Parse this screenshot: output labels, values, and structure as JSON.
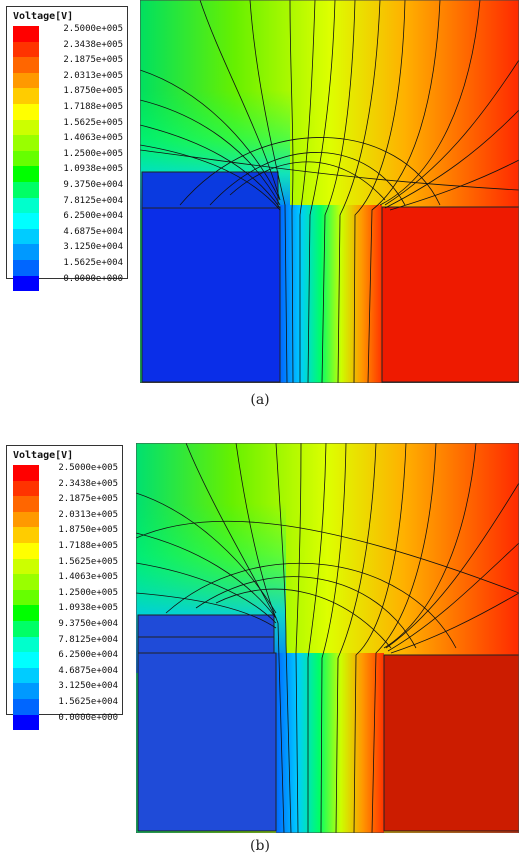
{
  "legend": {
    "title": "Voltage[V]",
    "labels": [
      "2.5000e+005",
      "2.3438e+005",
      "2.1875e+005",
      "2.0313e+005",
      "1.8750e+005",
      "1.7188e+005",
      "1.5625e+005",
      "1.4063e+005",
      "1.2500e+005",
      "1.0938e+005",
      "9.3750e+004",
      "7.8125e+004",
      "6.2500e+004",
      "4.6875e+004",
      "3.1250e+004",
      "1.5625e+004",
      "0.0000e+000"
    ],
    "colors": [
      "#ff0000",
      "#ff3300",
      "#ff6600",
      "#ff9900",
      "#ffcc00",
      "#ffff00",
      "#ccff00",
      "#99ff00",
      "#66ff00",
      "#00ff00",
      "#00ff66",
      "#00ffcc",
      "#00ffff",
      "#00ccff",
      "#0099ff",
      "#0066ff",
      "#0000ff"
    ]
  },
  "figures": [
    {
      "caption": "(a)"
    },
    {
      "caption": "(b)"
    }
  ]
}
